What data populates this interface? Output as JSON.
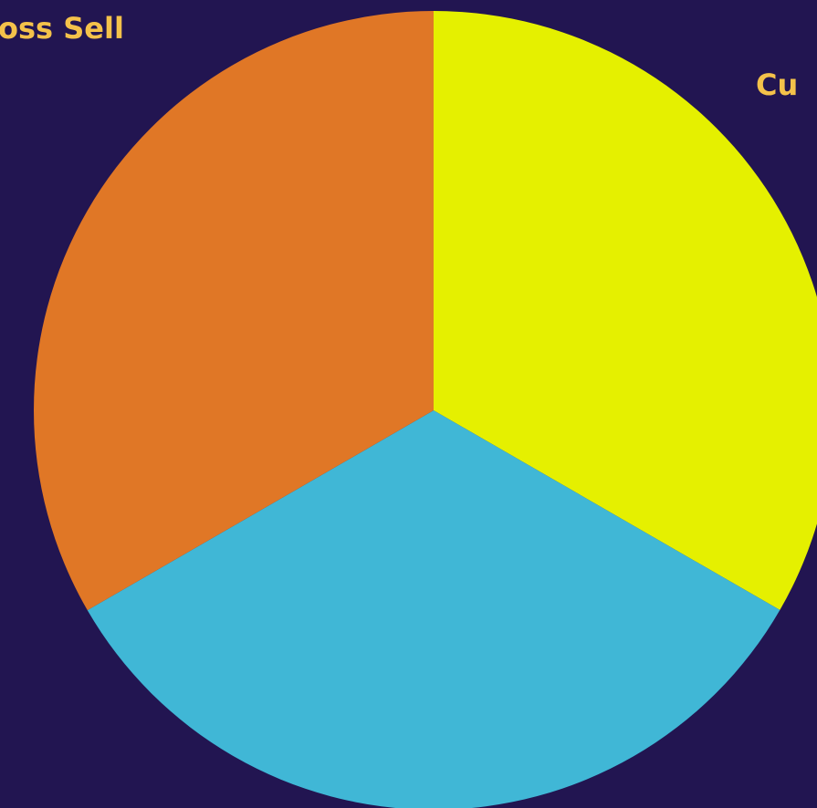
{
  "chart_data": {
    "type": "pie",
    "title": "",
    "slices": [
      {
        "label": "Cu",
        "value": 33.33,
        "color": "#E5F000",
        "label_color": "#F4C24A"
      },
      {
        "label": "",
        "value": 33.33,
        "color": "#40B7D6",
        "label_color": "#F4C24A"
      },
      {
        "label": "oss Sell",
        "value": 33.34,
        "color": "#E07726",
        "label_color": "#F4C24A"
      }
    ],
    "background": "#221551"
  }
}
